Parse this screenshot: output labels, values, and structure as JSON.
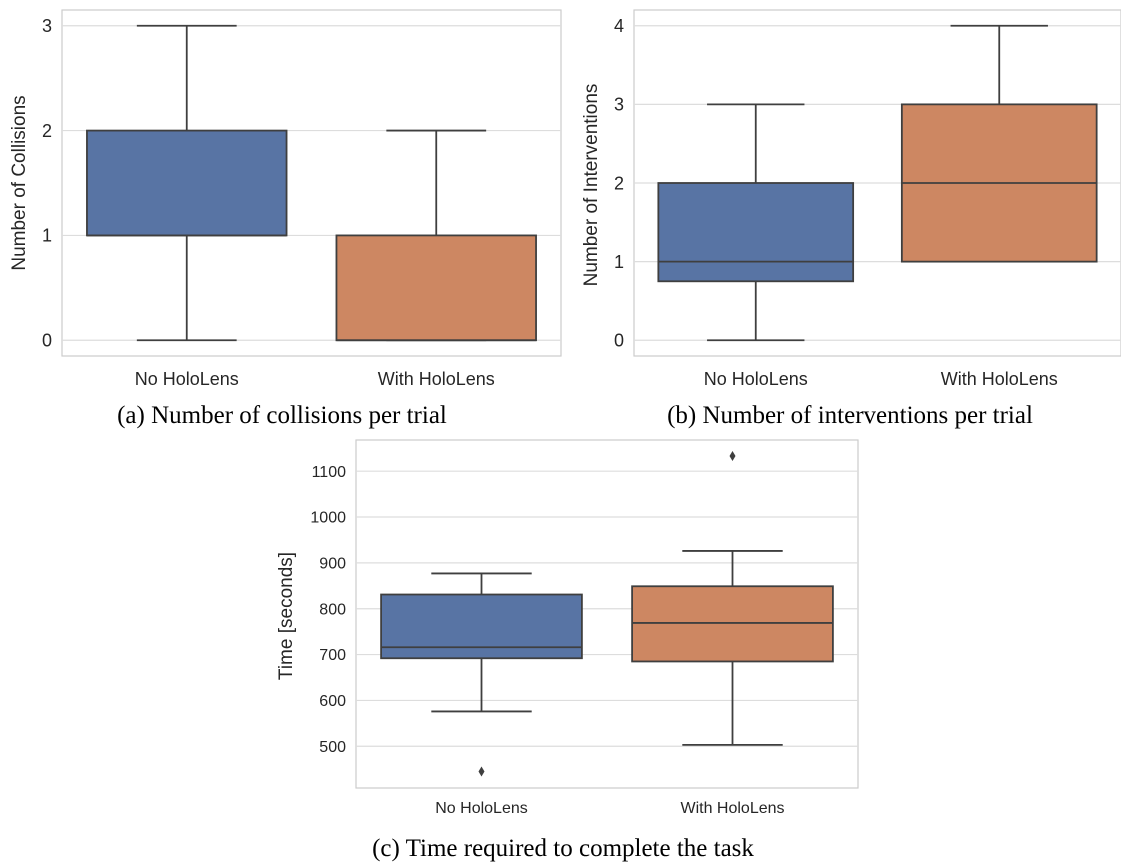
{
  "chart_data": [
    {
      "type": "box",
      "title": "",
      "caption": "(a) Number of collisions per trial",
      "xlabel": "",
      "ylabel": "Number of Collisions",
      "categories": [
        "No HoloLens",
        "With HoloLens"
      ],
      "ylim": [
        -0.15,
        3.15
      ],
      "yticks": [
        0,
        1,
        2,
        3
      ],
      "grid": true,
      "boxes": [
        {
          "category": "No HoloLens",
          "whisker_low": 0,
          "q1": 1,
          "median": 1,
          "q3": 2,
          "whisker_high": 3,
          "outliers": [],
          "color": "#5874a4"
        },
        {
          "category": "With HoloLens",
          "whisker_low": 0,
          "q1": 0,
          "median": 0,
          "q3": 1,
          "whisker_high": 2,
          "outliers": [],
          "color": "#cd8762"
        }
      ]
    },
    {
      "type": "box",
      "title": "",
      "caption": "(b) Number of interventions per trial",
      "xlabel": "",
      "ylabel": "Number of Interventions",
      "categories": [
        "No HoloLens",
        "With HoloLens"
      ],
      "ylim": [
        -0.2,
        4.2
      ],
      "yticks": [
        0,
        1,
        2,
        3,
        4
      ],
      "grid": true,
      "boxes": [
        {
          "category": "No HoloLens",
          "whisker_low": 0,
          "q1": 0.75,
          "median": 1,
          "q3": 2,
          "whisker_high": 3,
          "outliers": [],
          "color": "#5874a4"
        },
        {
          "category": "With HoloLens",
          "whisker_low": 1,
          "q1": 1,
          "median": 2,
          "q3": 3,
          "whisker_high": 4,
          "outliers": [],
          "color": "#cd8762"
        }
      ]
    },
    {
      "type": "box",
      "title": "",
      "caption": "(c) Time required to complete the task",
      "xlabel": "",
      "ylabel": "Time [seconds]",
      "categories": [
        "No HoloLens",
        "With HoloLens"
      ],
      "ylim": [
        409,
        1168
      ],
      "yticks": [
        500,
        600,
        700,
        800,
        900,
        1000,
        1100
      ],
      "grid": true,
      "boxes": [
        {
          "category": "No HoloLens",
          "whisker_low": 576,
          "q1": 692,
          "median": 716,
          "q3": 831,
          "whisker_high": 877,
          "outliers": [
            445
          ],
          "color": "#5874a4"
        },
        {
          "category": "With HoloLens",
          "whisker_low": 503,
          "q1": 685,
          "median": 769,
          "q3": 849,
          "whisker_high": 926,
          "outliers": [
            1133
          ],
          "color": "#cd8762"
        }
      ]
    }
  ]
}
